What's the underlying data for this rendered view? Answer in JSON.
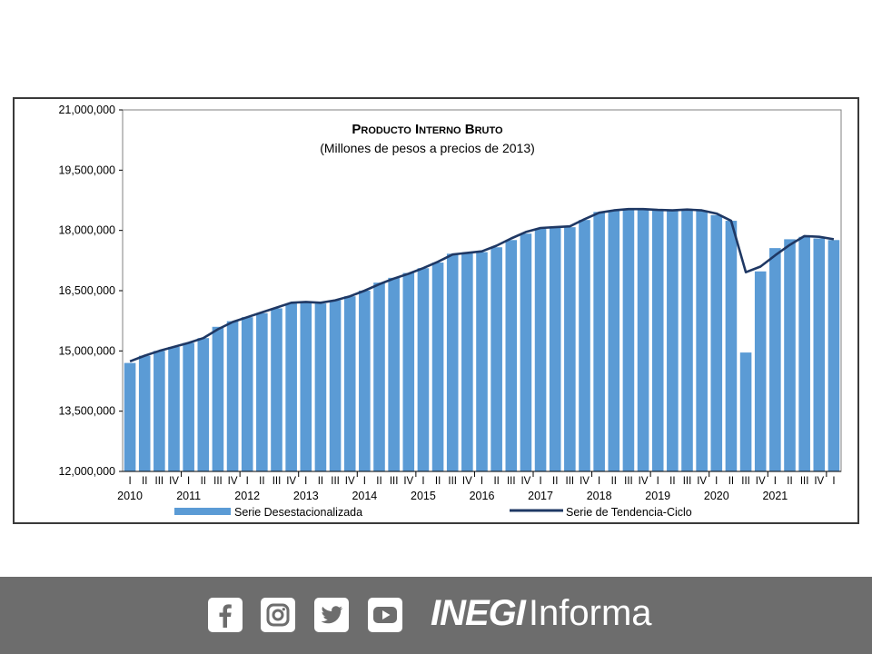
{
  "chart_data": {
    "type": "bar",
    "title": "Producto Interno Bruto",
    "subtitle": "(Millones de pesos a precios de 2013)",
    "ylim": [
      12000000,
      21000000
    ],
    "y_ticks": [
      12000000,
      13500000,
      15000000,
      16500000,
      18000000,
      19500000,
      21000000
    ],
    "y_tick_labels": [
      "12,000,000",
      "13,500,000",
      "15,000,000",
      "16,500,000",
      "18,000,000",
      "19,500,000",
      "21,000,000"
    ],
    "quarter_labels": [
      "I",
      "II",
      "III",
      "IV"
    ],
    "years": [
      "2010",
      "2011",
      "2012",
      "2013",
      "2014",
      "2015",
      "2016",
      "2017",
      "2018",
      "2019",
      "2020",
      "2021"
    ],
    "grid": false,
    "legend_position": "bottom",
    "series": [
      {
        "name": "Serie Desestacionalizada",
        "kind": "bar",
        "color": "#5b9bd5",
        "values": [
          14700000,
          14880000,
          15000000,
          15100000,
          15200000,
          15320000,
          15600000,
          15740000,
          15840000,
          15940000,
          16060000,
          16180000,
          16200000,
          16180000,
          16260000,
          16360000,
          16500000,
          16700000,
          16820000,
          16940000,
          17060000,
          17200000,
          17420000,
          17440000,
          17460000,
          17580000,
          17760000,
          17920000,
          18040000,
          18060000,
          18080000,
          18260000,
          18460000,
          18500000,
          18540000,
          18520000,
          18500000,
          18500000,
          18520000,
          18480000,
          18380000,
          18240000,
          14960000,
          16980000,
          17560000,
          17780000,
          17840000,
          17800000,
          17760000
        ]
      },
      {
        "name": "Serie de Tendencia-Ciclo",
        "kind": "line",
        "color": "#1f3864",
        "values": [
          14740000,
          14880000,
          15000000,
          15100000,
          15200000,
          15320000,
          15540000,
          15720000,
          15840000,
          15960000,
          16080000,
          16200000,
          16220000,
          16200000,
          16260000,
          16360000,
          16500000,
          16660000,
          16800000,
          16920000,
          17060000,
          17220000,
          17400000,
          17440000,
          17480000,
          17620000,
          17800000,
          17960000,
          18060000,
          18080000,
          18100000,
          18280000,
          18440000,
          18500000,
          18530000,
          18530000,
          18510000,
          18500000,
          18520000,
          18500000,
          18420000,
          18240000,
          16960000,
          17100000,
          17380000,
          17640000,
          17860000,
          17840000,
          17780000
        ]
      }
    ]
  },
  "footer": {
    "background": "#6d6d6d",
    "icons": [
      "facebook-icon",
      "instagram-icon",
      "twitter-icon",
      "youtube-icon"
    ],
    "brand_bold": "INEGI",
    "brand_regular": "Informa"
  }
}
